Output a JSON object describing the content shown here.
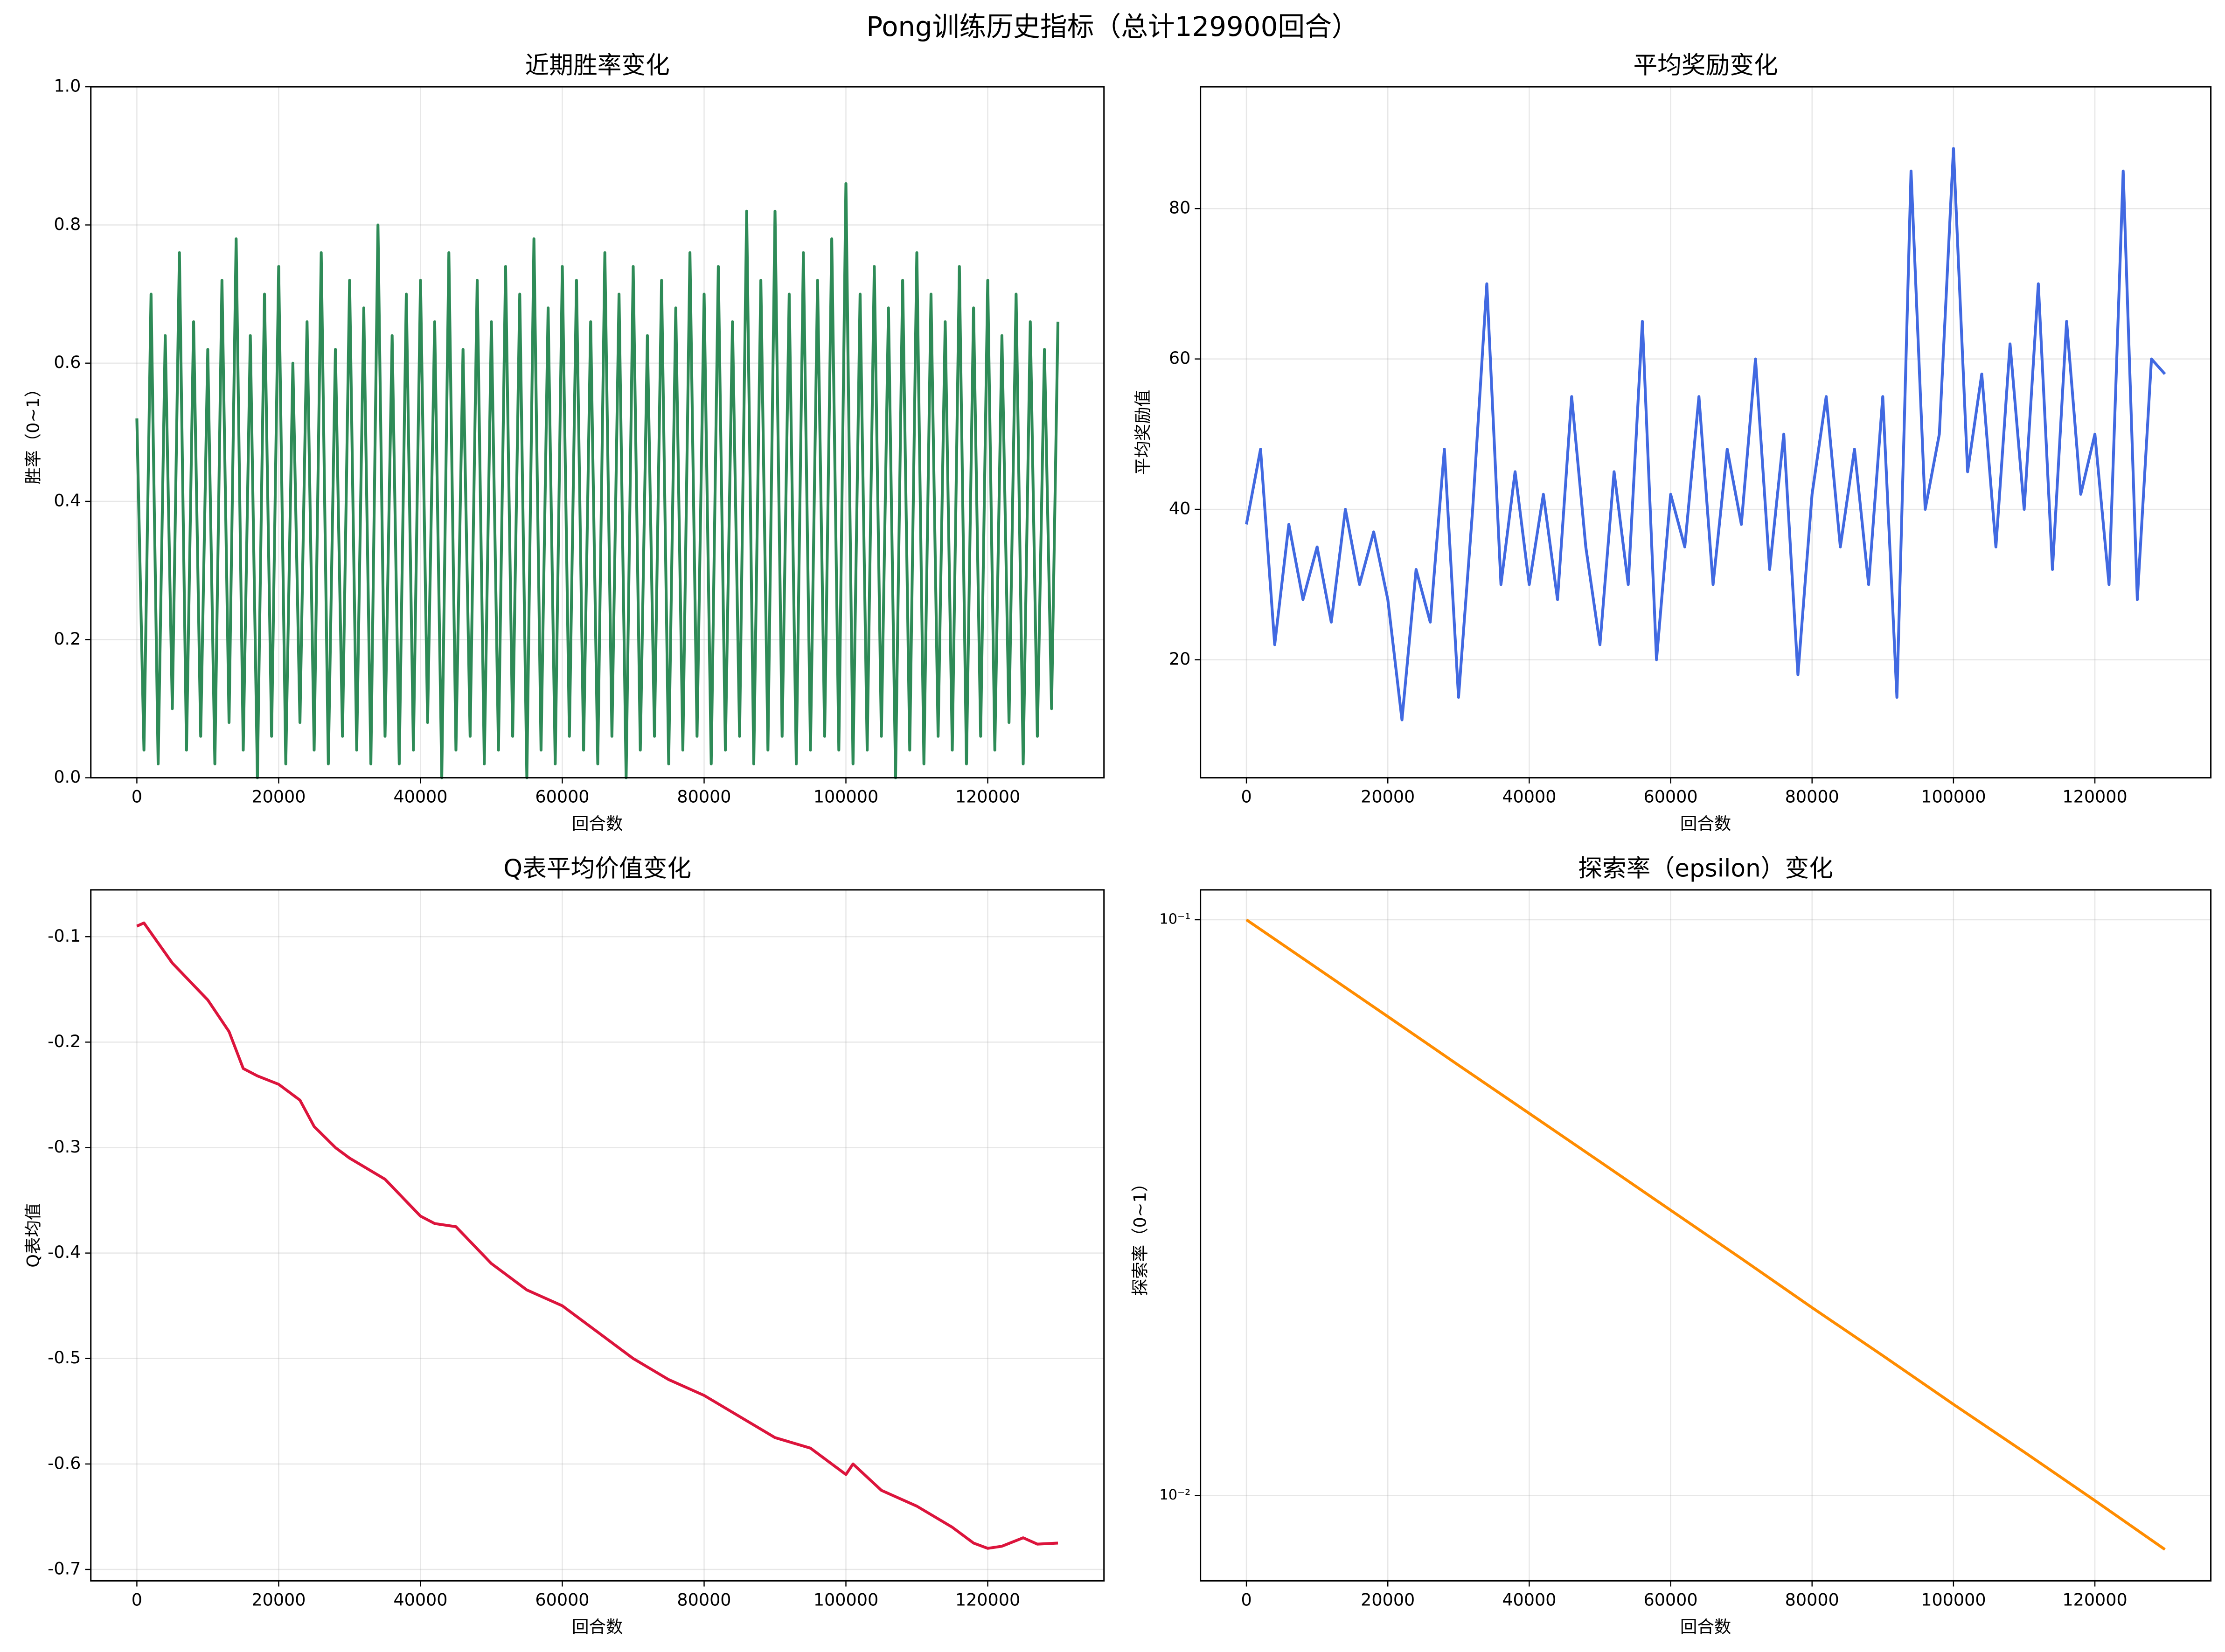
{
  "title": "Pong训练历史指标（总计129900回合）",
  "chart_data": [
    {
      "type": "line",
      "title": "近期胜率变化",
      "xlabel": "回合数",
      "ylabel": "胜率（0~1）",
      "color": "#2e8b57",
      "grid": true,
      "xlim": [
        -6495,
        136395
      ],
      "xticks": [
        0,
        20000,
        40000,
        60000,
        80000,
        100000,
        120000
      ],
      "ylim": [
        0,
        1
      ],
      "yticks": [
        {
          "value": 0,
          "label": "0.0"
        },
        0.2,
        0.4,
        0.6,
        0.8,
        {
          "value": 1,
          "label": "1.0"
        }
      ],
      "x": [
        0,
        1000,
        2000,
        3000,
        4000,
        5000,
        6000,
        7000,
        8000,
        9000,
        10000,
        11000,
        12000,
        13000,
        14000,
        15000,
        16000,
        17000,
        18000,
        19000,
        20000,
        21000,
        22000,
        23000,
        24000,
        25000,
        26000,
        27000,
        28000,
        29000,
        30000,
        31000,
        32000,
        33000,
        34000,
        35000,
        36000,
        37000,
        38000,
        39000,
        40000,
        41000,
        42000,
        43000,
        44000,
        45000,
        46000,
        47000,
        48000,
        49000,
        50000,
        51000,
        52000,
        53000,
        54000,
        55000,
        56000,
        57000,
        58000,
        59000,
        60000,
        61000,
        62000,
        63000,
        64000,
        65000,
        66000,
        67000,
        68000,
        69000,
        70000,
        71000,
        72000,
        73000,
        74000,
        75000,
        76000,
        77000,
        78000,
        79000,
        80000,
        81000,
        82000,
        83000,
        84000,
        85000,
        86000,
        87000,
        88000,
        89000,
        90000,
        91000,
        92000,
        93000,
        94000,
        95000,
        96000,
        97000,
        98000,
        99000,
        100000,
        101000,
        102000,
        103000,
        104000,
        105000,
        106000,
        107000,
        108000,
        109000,
        110000,
        111000,
        112000,
        113000,
        114000,
        115000,
        116000,
        117000,
        118000,
        119000,
        120000,
        121000,
        122000,
        123000,
        124000,
        125000,
        126000,
        127000,
        128000,
        129000,
        129900
      ],
      "values": [
        0.52,
        0.04,
        0.7,
        0.02,
        0.64,
        0.1,
        0.76,
        0.04,
        0.66,
        0.06,
        0.62,
        0.02,
        0.72,
        0.08,
        0.78,
        0.04,
        0.64,
        0.0,
        0.7,
        0.06,
        0.74,
        0.02,
        0.6,
        0.08,
        0.66,
        0.04,
        0.76,
        0.02,
        0.62,
        0.06,
        0.72,
        0.04,
        0.68,
        0.02,
        0.8,
        0.06,
        0.64,
        0.02,
        0.7,
        0.04,
        0.72,
        0.08,
        0.66,
        0.0,
        0.76,
        0.04,
        0.62,
        0.06,
        0.72,
        0.02,
        0.66,
        0.04,
        0.74,
        0.06,
        0.7,
        0.0,
        0.78,
        0.04,
        0.68,
        0.02,
        0.74,
        0.06,
        0.72,
        0.04,
        0.66,
        0.02,
        0.76,
        0.06,
        0.7,
        0.0,
        0.74,
        0.04,
        0.64,
        0.06,
        0.72,
        0.02,
        0.68,
        0.04,
        0.76,
        0.06,
        0.7,
        0.02,
        0.74,
        0.04,
        0.66,
        0.06,
        0.82,
        0.02,
        0.72,
        0.04,
        0.82,
        0.06,
        0.7,
        0.02,
        0.76,
        0.04,
        0.72,
        0.06,
        0.78,
        0.04,
        0.86,
        0.02,
        0.7,
        0.04,
        0.74,
        0.06,
        0.68,
        0.0,
        0.72,
        0.04,
        0.76,
        0.02,
        0.7,
        0.06,
        0.66,
        0.04,
        0.74,
        0.02,
        0.68,
        0.06,
        0.72,
        0.04,
        0.64,
        0.08,
        0.7,
        0.02,
        0.66,
        0.06,
        0.62,
        0.1,
        0.66
      ]
    },
    {
      "type": "line",
      "title": "平均奖励变化",
      "xlabel": "回合数",
      "ylabel": "平均奖励值",
      "color": "#4169e1",
      "grid": true,
      "xlim": [
        -6495,
        136395
      ],
      "xticks": [
        0,
        20000,
        40000,
        60000,
        80000,
        100000,
        120000
      ],
      "ylim": [
        4.3,
        96.2
      ],
      "yticks": [
        20,
        40,
        60,
        80
      ],
      "x": [
        0,
        2000,
        4000,
        6000,
        8000,
        10000,
        12000,
        14000,
        16000,
        18000,
        20000,
        22000,
        24000,
        26000,
        28000,
        30000,
        32000,
        34000,
        36000,
        38000,
        40000,
        42000,
        44000,
        46000,
        48000,
        50000,
        52000,
        54000,
        56000,
        58000,
        60000,
        62000,
        64000,
        66000,
        68000,
        70000,
        72000,
        74000,
        76000,
        78000,
        80000,
        82000,
        84000,
        86000,
        88000,
        90000,
        92000,
        94000,
        96000,
        98000,
        100000,
        102000,
        104000,
        106000,
        108000,
        110000,
        112000,
        114000,
        116000,
        118000,
        120000,
        122000,
        124000,
        126000,
        128000,
        129900
      ],
      "values": [
        38,
        48,
        22,
        38,
        28,
        35,
        25,
        40,
        30,
        37,
        28,
        12,
        32,
        25,
        48,
        15,
        40,
        70,
        30,
        45,
        30,
        42,
        28,
        55,
        35,
        22,
        45,
        30,
        65,
        20,
        42,
        35,
        55,
        30,
        48,
        38,
        60,
        32,
        50,
        18,
        42,
        55,
        35,
        48,
        30,
        55,
        15,
        85,
        40,
        50,
        88,
        45,
        58,
        35,
        62,
        40,
        70,
        32,
        65,
        42,
        50,
        30,
        85,
        28,
        60,
        58
      ]
    },
    {
      "type": "line",
      "title": "Q表平均价值变化",
      "xlabel": "回合数",
      "ylabel": "Q表均值",
      "color": "#dc143c",
      "grid": true,
      "xlim": [
        -6495,
        136395
      ],
      "xticks": [
        0,
        20000,
        40000,
        60000,
        80000,
        100000,
        120000
      ],
      "ylim": [
        -0.7108,
        -0.0556
      ],
      "yticks": [
        -0.1,
        -0.2,
        -0.3,
        -0.4,
        -0.5,
        -0.6,
        -0.7
      ],
      "x": [
        0,
        1000,
        5000,
        10000,
        13000,
        15000,
        17000,
        20000,
        23000,
        25000,
        28000,
        30000,
        35000,
        40000,
        42000,
        45000,
        50000,
        55000,
        60000,
        65000,
        70000,
        75000,
        80000,
        85000,
        90000,
        95000,
        100000,
        101000,
        105000,
        110000,
        115000,
        118000,
        120000,
        122000,
        125000,
        127000,
        129900
      ],
      "values": [
        -0.09,
        -0.087,
        -0.125,
        -0.16,
        -0.19,
        -0.225,
        -0.232,
        -0.24,
        -0.255,
        -0.28,
        -0.3,
        -0.31,
        -0.33,
        -0.365,
        -0.372,
        -0.375,
        -0.41,
        -0.435,
        -0.45,
        -0.475,
        -0.5,
        -0.52,
        -0.535,
        -0.555,
        -0.575,
        -0.585,
        -0.61,
        -0.6,
        -0.625,
        -0.64,
        -0.66,
        -0.675,
        -0.68,
        -0.678,
        -0.67,
        -0.676,
        -0.675
      ]
    },
    {
      "type": "line",
      "title": "探索率（epsilon）变化",
      "xlabel": "回合数",
      "ylabel": "探索率（0~1）",
      "color": "#ff8c00",
      "grid": true,
      "ylog": true,
      "xlim": [
        -6495,
        136395
      ],
      "xticks": [
        0,
        20000,
        40000,
        60000,
        80000,
        100000,
        120000
      ],
      "ylim": [
        0.00711,
        0.1127
      ],
      "yticks": [
        {
          "value": 0.1,
          "label": "10⁻¹"
        },
        {
          "value": 0.01,
          "label": "10⁻²"
        }
      ],
      "x": [
        0,
        10000,
        20000,
        30000,
        40000,
        50000,
        60000,
        70000,
        80000,
        90000,
        100000,
        110000,
        120000,
        129900
      ],
      "values": [
        0.1,
        0.0824,
        0.0679,
        0.0559,
        0.0461,
        0.038,
        0.0313,
        0.0258,
        0.0212,
        0.0175,
        0.0144,
        0.0119,
        0.0098,
        0.00806
      ]
    }
  ]
}
